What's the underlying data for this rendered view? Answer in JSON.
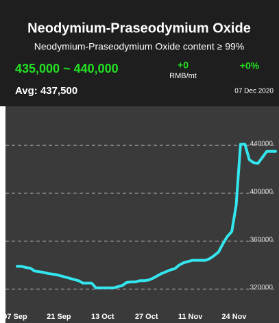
{
  "header": {
    "title": "Neodymium-Praseodymium Oxide",
    "subtitle": "Neodymium-Praseodymium Oxide content ≥ 99%",
    "price_range": "435,000 ~ 440,000",
    "change": "+0",
    "unit": "RMB/mt",
    "change_pct": "+0%",
    "avg": "Avg: 437,500",
    "date": "07 Dec 2020"
  },
  "chart_data": {
    "type": "line",
    "categories": [
      "07 Sep",
      null,
      null,
      null,
      null,
      null,
      null,
      null,
      null,
      null,
      "21 Sep",
      null,
      null,
      null,
      null,
      null,
      null,
      null,
      null,
      null,
      "13 Oct",
      null,
      null,
      null,
      null,
      null,
      null,
      null,
      null,
      null,
      "27 Oct",
      null,
      null,
      null,
      null,
      null,
      null,
      null,
      null,
      null,
      "11 Nov",
      null,
      null,
      null,
      null,
      null,
      null,
      null,
      null,
      null,
      "24 Nov",
      null,
      null,
      null,
      null,
      null,
      null,
      null,
      null,
      null
    ],
    "series": [
      {
        "color": "#33e6ee",
        "values": [
          339000,
          339000,
          338000,
          337500,
          335000,
          334500,
          334000,
          333000,
          332500,
          332000,
          331000,
          330000,
          329000,
          328000,
          327000,
          325000,
          325000,
          325000,
          321000,
          321000,
          321000,
          321000,
          321000,
          322000,
          323000,
          325500,
          326000,
          326000,
          327000,
          327000,
          327500,
          329000,
          331000,
          333000,
          334500,
          336000,
          337000,
          340000,
          342000,
          343000,
          344000,
          344000,
          344000,
          344000,
          345500,
          348000,
          351000,
          358000,
          364000,
          368000,
          390000,
          441000,
          441000,
          428000,
          425500,
          425000,
          430000,
          435000,
          435000,
          435000
        ]
      }
    ],
    "ylim": [
      306000,
      464000
    ],
    "yticks": [
      320000,
      360000,
      400000,
      440000
    ],
    "grid": true
  }
}
